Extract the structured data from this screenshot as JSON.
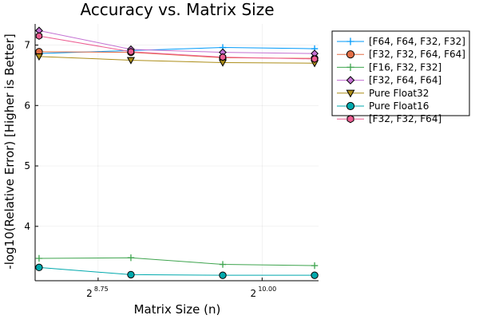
{
  "chart_data": {
    "type": "line",
    "title": "Accuracy vs. Matrix Size",
    "xlabel": "Matrix Size (n)",
    "ylabel": "-log10(Relative Error) [Higher is Better]",
    "x_scale": "log2",
    "x_exponents": [
      8.3,
      9.0,
      9.7,
      10.4
    ],
    "xlim_exponent": [
      8.27,
      10.43
    ],
    "xticks": [
      {
        "base": "2",
        "exp": "8.75",
        "value": 8.75
      },
      {
        "base": "2",
        "exp": "10.00",
        "value": 10.0
      }
    ],
    "ylim": [
      3.1,
      7.35
    ],
    "yticks": [
      4,
      5,
      6,
      7
    ],
    "grid": true,
    "legend_position": "right",
    "series": [
      {
        "name": "[F64, F64, F32, F32]",
        "color": "#009AFA",
        "marker": "cross",
        "values": [
          6.86,
          6.91,
          6.96,
          6.94
        ]
      },
      {
        "name": "[F32, F32, F64, F64]",
        "color": "#E36F47",
        "marker": "circle",
        "values": [
          6.89,
          6.88,
          6.79,
          6.78
        ]
      },
      {
        "name": "[F16, F32, F32]",
        "color": "#3EA44E",
        "marker": "cross",
        "values": [
          3.47,
          3.48,
          3.37,
          3.35
        ]
      },
      {
        "name": "[F32, F64, F64]",
        "color": "#C371D2",
        "marker": "diamond",
        "values": [
          7.24,
          6.93,
          6.88,
          6.86
        ]
      },
      {
        "name": "Pure Float32",
        "color": "#AC8D18",
        "marker": "triangle-down",
        "values": [
          6.81,
          6.75,
          6.71,
          6.7
        ]
      },
      {
        "name": "Pure Float16",
        "color": "#00A9AD",
        "marker": "circle",
        "values": [
          3.32,
          3.2,
          3.19,
          3.19
        ]
      },
      {
        "name": "[F32, F32, F64]",
        "color": "#ED5D92",
        "marker": "hexagon",
        "values": [
          7.15,
          6.89,
          6.8,
          6.77
        ]
      }
    ]
  }
}
